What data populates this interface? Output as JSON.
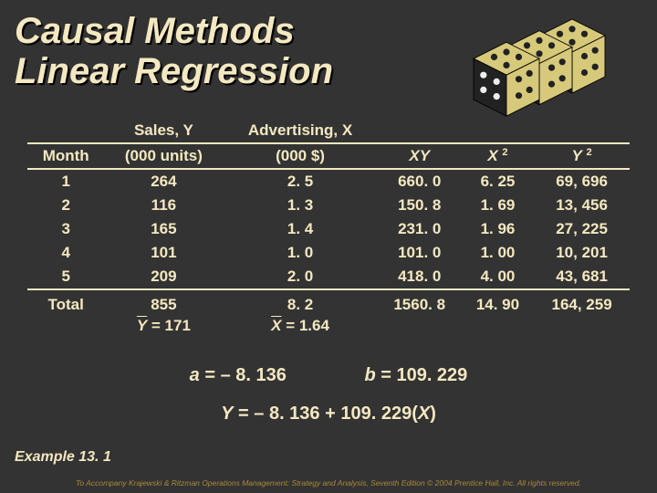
{
  "title_line1": "Causal Methods",
  "title_line2": "Linear Regression",
  "headers": {
    "month": "Month",
    "sales_top": "Sales, Y",
    "sales_bot": "(000 units)",
    "adv_top": "Advertising, X",
    "adv_bot": "(000 $)",
    "xy": "XY",
    "x2_pre": "X",
    "x2_sup": "2",
    "y2_pre": "Y",
    "y2_sup": "2"
  },
  "rows": [
    {
      "m": "1",
      "y": "264",
      "x": "2. 5",
      "xy": "660. 0",
      "x2": "6. 25",
      "y2": "69, 696"
    },
    {
      "m": "2",
      "y": "116",
      "x": "1. 3",
      "xy": "150. 8",
      "x2": "1. 69",
      "y2": "13, 456"
    },
    {
      "m": "3",
      "y": "165",
      "x": "1. 4",
      "xy": "231. 0",
      "x2": "1. 96",
      "y2": "27, 225"
    },
    {
      "m": "4",
      "y": "101",
      "x": "1. 0",
      "xy": "101. 0",
      "x2": "1. 00",
      "y2": "10, 201"
    },
    {
      "m": "5",
      "y": "209",
      "x": "2. 0",
      "xy": "418. 0",
      "x2": "4. 00",
      "y2": "43, 681"
    }
  ],
  "totals": {
    "label": "Total",
    "y": "855",
    "x": "8. 2",
    "xy": "1560. 8",
    "x2": "14. 90",
    "y2": "164, 259"
  },
  "means": {
    "ybar_pre": "Y",
    "ybar_val": " = 171",
    "xbar_pre": "X",
    "xbar_val": " = 1.64"
  },
  "ab": {
    "a_pre": "a",
    "a_val": " =  – 8. 136",
    "b_pre": "b",
    "b_val": " =  109. 229"
  },
  "yline": {
    "y": "Y",
    "rest": " = – 8. 136 + 109. 229(",
    "x": "X",
    "end": ")"
  },
  "example": "Example 13. 1",
  "footer": "To Accompany Krajewski & Ritzman Operations Management: Strategy and Analysis, Seventh Edition © 2004 Prentice Hall, Inc. All rights reserved.",
  "dice": {
    "body": "#d7c97a",
    "face": "#222",
    "pip": "#eee"
  }
}
